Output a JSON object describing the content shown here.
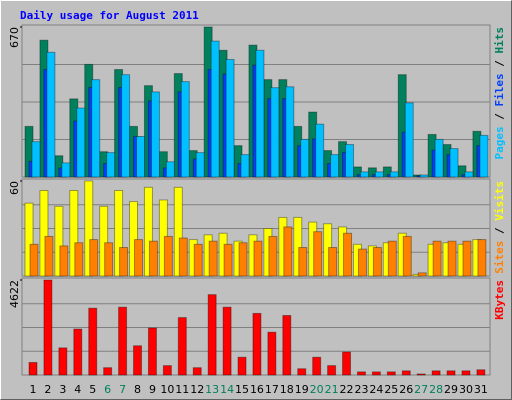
{
  "chart_data": [
    {
      "type": "bar",
      "title": "Daily usage for August 2011",
      "legend_separator": " / ",
      "ylim": [
        0,
        670
      ],
      "yticks": [
        670
      ],
      "grid": true,
      "series": [
        {
          "name": "Hits",
          "color": "#00805c",
          "values": [
            226,
            611,
            95,
            349,
            503,
            113,
            480,
            226,
            408,
            113,
            462,
            118,
            670,
            566,
            140,
            589,
            435,
            435,
            226,
            290,
            118,
            158,
            45,
            41,
            45,
            457,
            9,
            190,
            145,
            50,
            204
          ]
        },
        {
          "name": "Files",
          "color": "#0040ff",
          "values": [
            70,
            480,
            40,
            250,
            400,
            60,
            400,
            180,
            340,
            40,
            380,
            80,
            480,
            460,
            60,
            500,
            350,
            350,
            140,
            170,
            60,
            110,
            10,
            10,
            10,
            200,
            5,
            120,
            100,
            10,
            140
          ]
        },
        {
          "name": "Pages",
          "color": "#00c0ff",
          "values": [
            158,
            557,
            63,
            308,
            435,
            109,
            457,
            181,
            380,
            68,
            426,
            109,
            607,
            525,
            100,
            566,
            399,
            403,
            168,
            236,
            100,
            145,
            23,
            23,
            23,
            331,
            9,
            168,
            127,
            23,
            186
          ]
        }
      ]
    },
    {
      "type": "bar",
      "legend_separator": " / ",
      "ylim": [
        0,
        60
      ],
      "yticks": [
        60
      ],
      "grid": true,
      "series": [
        {
          "name": "Visits",
          "color": "#ffff00",
          "values": [
            46,
            54,
            44,
            54,
            60,
            44,
            54,
            47,
            56,
            48,
            56,
            23,
            26,
            27,
            22,
            26,
            30,
            37,
            37,
            34,
            33,
            31,
            20,
            19,
            21,
            27,
            1,
            20,
            21,
            20,
            23
          ]
        },
        {
          "name": "Sites",
          "color": "#ff8000",
          "values": [
            20,
            25,
            19,
            21,
            23,
            21,
            18,
            23,
            22,
            25,
            24,
            20,
            22,
            20,
            21,
            22,
            25,
            31,
            18,
            28,
            18,
            27,
            17,
            18,
            22,
            25,
            2,
            22,
            22,
            22,
            23
          ]
        }
      ]
    },
    {
      "type": "bar",
      "ylim": [
        0,
        4622
      ],
      "yticks": [
        4622
      ],
      "grid": true,
      "categories": [
        "1",
        "2",
        "3",
        "4",
        "5",
        "6",
        "7",
        "8",
        "9",
        "10",
        "11",
        "12",
        "13",
        "14",
        "15",
        "16",
        "17",
        "18",
        "19",
        "20",
        "21",
        "22",
        "23",
        "24",
        "25",
        "26",
        "27",
        "28",
        "29",
        "30",
        "31"
      ],
      "category_colors": [
        "#000000",
        "#000000",
        "#000000",
        "#000000",
        "#000000",
        "#00805c",
        "#00805c",
        "#000000",
        "#000000",
        "#000000",
        "#000000",
        "#000000",
        "#00805c",
        "#00805c",
        "#000000",
        "#000000",
        "#000000",
        "#000000",
        "#000000",
        "#00805c",
        "#00805c",
        "#000000",
        "#000000",
        "#000000",
        "#000000",
        "#000000",
        "#00805c",
        "#00805c",
        "#000000",
        "#000000",
        "#000000"
      ],
      "series": [
        {
          "name": "KBytes",
          "color": "#ff0000",
          "values": [
            610,
            4622,
            1320,
            2235,
            3250,
            356,
            3300,
            1422,
            2285,
            457,
            2794,
            356,
            3910,
            3300,
            864,
            2997,
            2083,
            2895,
            305,
            864,
            457,
            1117,
            152,
            152,
            152,
            203,
            51,
            203,
            203,
            203,
            254
          ]
        }
      ]
    }
  ]
}
